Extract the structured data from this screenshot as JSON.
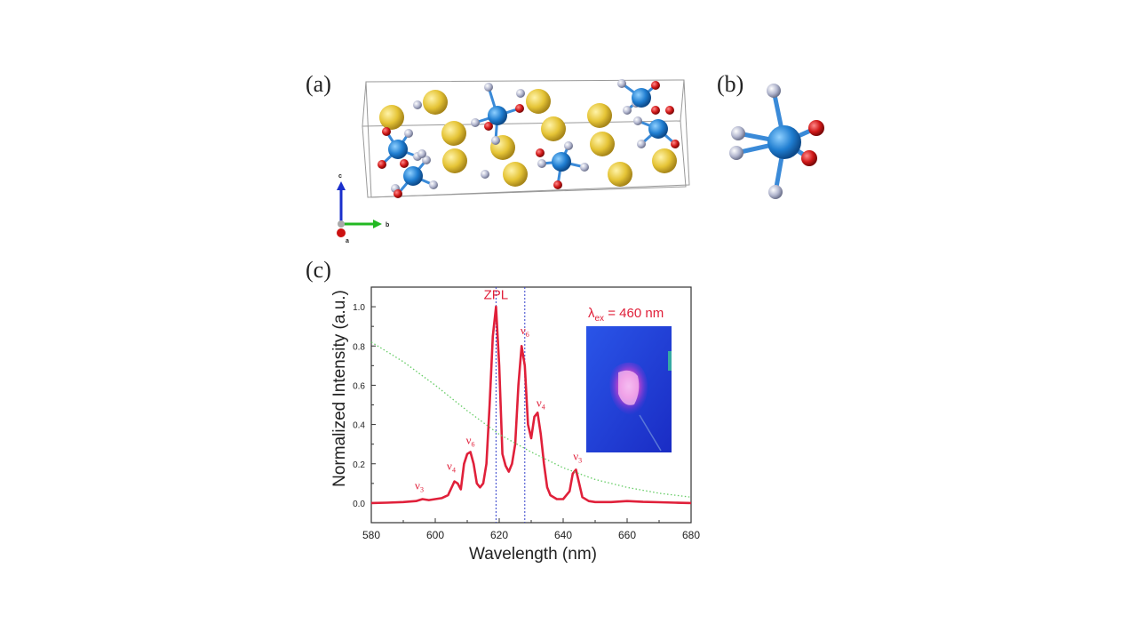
{
  "panels": {
    "a": "(a)",
    "b": "(b)",
    "c": "(c)"
  },
  "axis_triad": {
    "c": "c",
    "b": "b",
    "a": "a"
  },
  "colors": {
    "spectrum": "#e0203a",
    "excitation_dotted": "#66cc66",
    "zpl_line": "#3340cc",
    "atom_gold": "#e5c436",
    "atom_blue": "#1f7dd0",
    "atom_red": "#d01818",
    "atom_grey": "#a9aec6",
    "inset_bg": "#1e3ad8"
  },
  "chart_data": {
    "type": "line",
    "title": "",
    "xlabel": "Wavelength (nm)",
    "ylabel": "Normalized Intensity (a.u.)",
    "xlim": [
      580,
      680
    ],
    "ylim": [
      -0.1,
      1.1
    ],
    "x_ticks": [
      "580",
      "600",
      "620",
      "640",
      "660",
      "680"
    ],
    "y_ticks": [
      "0.0",
      "0.2",
      "0.4",
      "0.6",
      "0.8",
      "1.0"
    ],
    "series": [
      {
        "style": "solid red",
        "x": [
          580,
          585,
          590,
          594,
          596,
          598,
          600,
          602,
          604,
          606,
          607,
          608,
          609,
          610,
          611,
          612,
          613,
          614,
          615,
          616,
          617,
          618,
          619,
          620,
          621,
          622,
          623,
          624,
          625,
          626,
          627,
          628,
          629,
          630,
          631,
          632,
          633,
          634,
          635,
          636,
          638,
          640,
          642,
          643,
          644,
          645,
          646,
          648,
          650,
          655,
          660,
          665,
          670,
          675,
          680
        ],
        "y": [
          0.0,
          0.002,
          0.005,
          0.01,
          0.02,
          0.015,
          0.02,
          0.025,
          0.04,
          0.11,
          0.1,
          0.07,
          0.2,
          0.25,
          0.26,
          0.2,
          0.1,
          0.08,
          0.1,
          0.2,
          0.5,
          0.85,
          1.0,
          0.7,
          0.25,
          0.19,
          0.16,
          0.2,
          0.3,
          0.6,
          0.8,
          0.7,
          0.4,
          0.33,
          0.44,
          0.46,
          0.35,
          0.2,
          0.08,
          0.04,
          0.02,
          0.02,
          0.06,
          0.15,
          0.17,
          0.1,
          0.03,
          0.01,
          0.005,
          0.005,
          0.01,
          0.006,
          0.004,
          0.002,
          0.0
        ]
      },
      {
        "style": "dotted green",
        "x": [
          580,
          590,
          600,
          610,
          620,
          630,
          640,
          650,
          660,
          670,
          680
        ],
        "y": [
          0.82,
          0.72,
          0.6,
          0.47,
          0.35,
          0.26,
          0.18,
          0.12,
          0.08,
          0.05,
          0.03
        ]
      }
    ],
    "vertical_lines": [
      619,
      628
    ],
    "annotations": [
      {
        "text": "ZPL",
        "x": 619,
        "y": 1.04
      },
      {
        "text": "ν",
        "sub": "6",
        "x": 628,
        "y": 0.86
      },
      {
        "text": "ν",
        "sub": "4",
        "x": 633,
        "y": 0.49
      },
      {
        "text": "ν",
        "sub": "3",
        "x": 644.5,
        "y": 0.22
      },
      {
        "text": "ν",
        "sub": "6",
        "x": 611,
        "y": 0.3
      },
      {
        "text": "ν",
        "sub": "4",
        "x": 605,
        "y": 0.17
      },
      {
        "text": "ν",
        "sub": "3",
        "x": 595,
        "y": 0.07
      }
    ],
    "inset_label": {
      "prefix": "λ",
      "sub": "ex",
      "suffix": " = 460 nm"
    }
  }
}
